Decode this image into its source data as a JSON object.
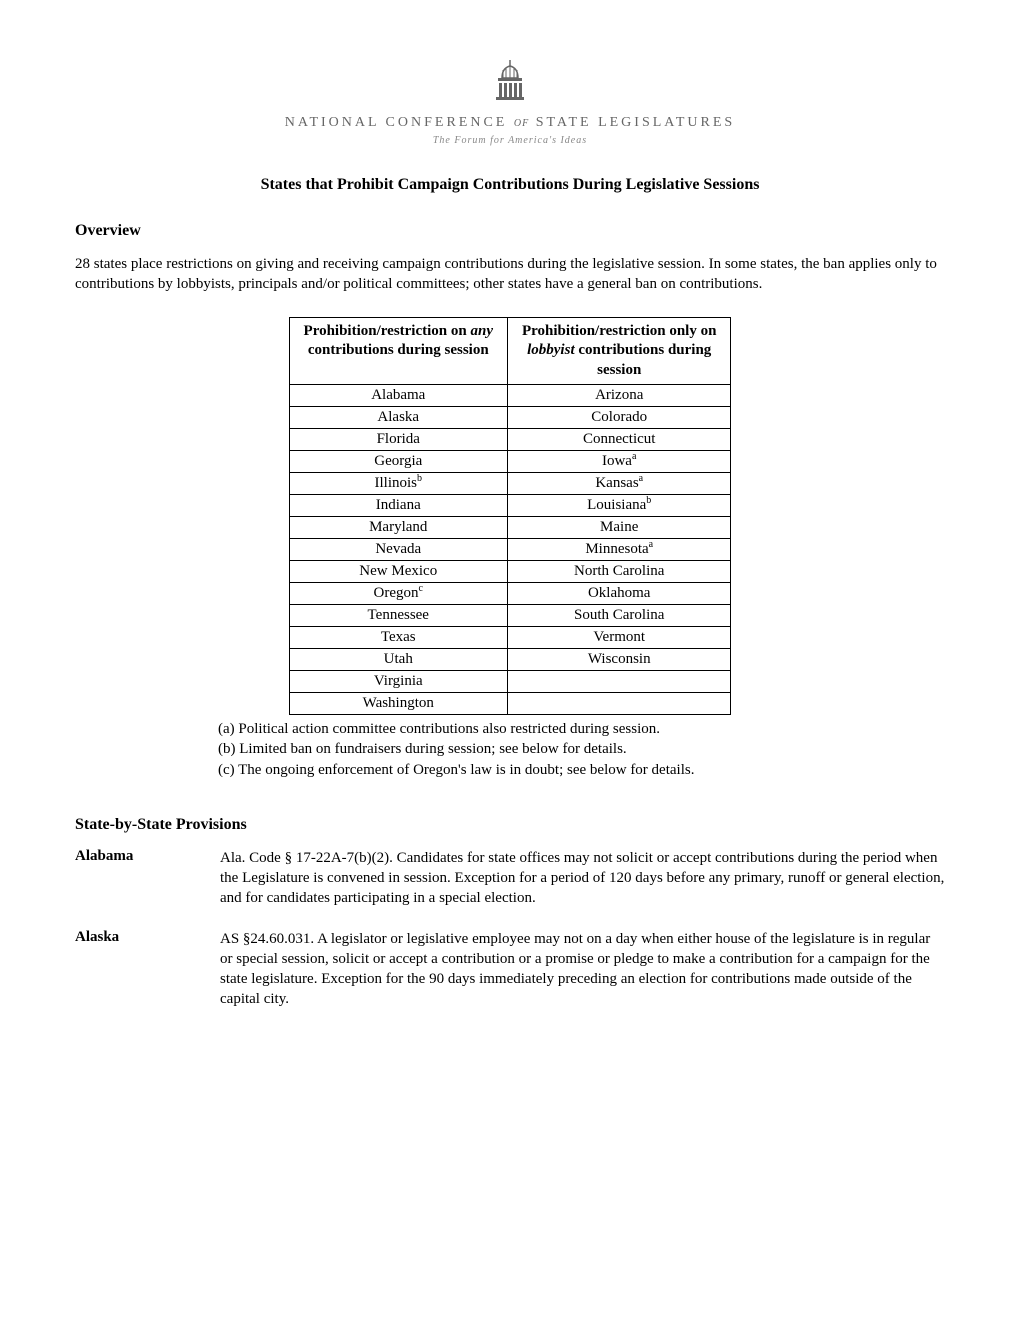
{
  "org": {
    "name_part1": "NATIONAL CONFERENCE",
    "name_of": "of",
    "name_part2": "STATE LEGISLATURES",
    "tagline": "The Forum for America's Ideas"
  },
  "doc_title": "States that Prohibit Campaign Contributions During Legislative Sessions",
  "overview": {
    "heading": "Overview",
    "text": "28 states place restrictions on giving and receiving campaign contributions during the legislative session. In some states, the ban applies only to contributions by lobbyists, principals and/or political committees; other states have a general ban on contributions."
  },
  "table": {
    "col1_header_line1": "Prohibition/restriction on",
    "col1_header_italic": "any",
    "col1_header_line2": "contributions during session",
    "col2_header_line1": "Prohibition/restriction only on",
    "col2_header_italic": "lobbyist",
    "col2_header_line2_rest": "contributions during",
    "col2_header_line3": "session",
    "rows": [
      {
        "c1": "Alabama",
        "c1_sup": "",
        "c2": "Arizona",
        "c2_sup": ""
      },
      {
        "c1": "Alaska",
        "c1_sup": "",
        "c2": "Colorado",
        "c2_sup": ""
      },
      {
        "c1": "Florida",
        "c1_sup": "",
        "c2": "Connecticut",
        "c2_sup": ""
      },
      {
        "c1": "Georgia",
        "c1_sup": "",
        "c2": "Iowa",
        "c2_sup": "a"
      },
      {
        "c1": "Illinois",
        "c1_sup": "b",
        "c2": "Kansas",
        "c2_sup": "a"
      },
      {
        "c1": "Indiana",
        "c1_sup": "",
        "c2": "Louisiana",
        "c2_sup": "b"
      },
      {
        "c1": "Maryland",
        "c1_sup": "",
        "c2": "Maine",
        "c2_sup": ""
      },
      {
        "c1": "Nevada",
        "c1_sup": "",
        "c2": "Minnesota",
        "c2_sup": "a"
      },
      {
        "c1": "New Mexico",
        "c1_sup": "",
        "c2": "North Carolina",
        "c2_sup": ""
      },
      {
        "c1": "Oregon",
        "c1_sup": "c",
        "c2": "Oklahoma",
        "c2_sup": ""
      },
      {
        "c1": "Tennessee",
        "c1_sup": "",
        "c2": "South Carolina",
        "c2_sup": ""
      },
      {
        "c1": "Texas",
        "c1_sup": "",
        "c2": "Vermont",
        "c2_sup": ""
      },
      {
        "c1": "Utah",
        "c1_sup": "",
        "c2": "Wisconsin",
        "c2_sup": ""
      },
      {
        "c1": "Virginia",
        "c1_sup": "",
        "c2": "",
        "c2_sup": ""
      },
      {
        "c1": "Washington",
        "c1_sup": "",
        "c2": "",
        "c2_sup": ""
      }
    ]
  },
  "footnotes": {
    "a": "(a) Political action committee contributions also restricted during session.",
    "b": "(b) Limited ban on fundraisers during session; see below for details.",
    "c": "(c) The ongoing enforcement of Oregon's law is in doubt; see below for details."
  },
  "provisions": {
    "heading": "State-by-State Provisions",
    "states": [
      {
        "name": "Alabama",
        "desc": "Ala. Code § 17-22A-7(b)(2).  Candidates for state offices may not solicit or accept contributions during the period when the Legislature is convened in session.  Exception for a period of 120 days before any primary, runoff or general election, and for candidates participating in a special election."
      },
      {
        "name": "Alaska",
        "desc": "AS §24.60.031. A legislator or legislative employee may not on a day when either house of the legislature is in regular or special session, solicit or accept a contribution or a promise or pledge to make a contribution for a campaign for the state legislature.  Exception for the 90 days immediately preceding an election for contributions made outside of the capital city."
      }
    ]
  }
}
